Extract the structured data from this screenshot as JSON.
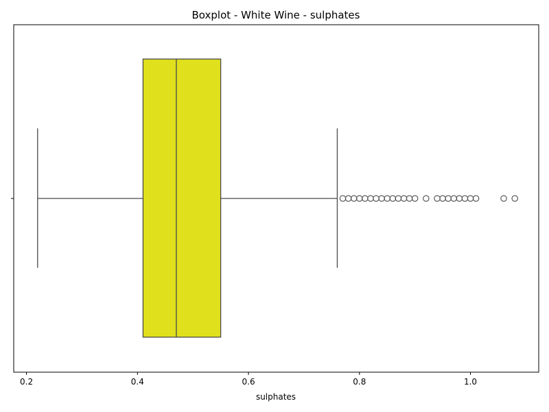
{
  "chart_data": {
    "type": "boxplot",
    "title": "Boxplot - White Wine - sulphates",
    "xlabel": "sulphates",
    "ylabel": "",
    "orientation": "horizontal",
    "xlim": [
      0.177,
      1.123
    ],
    "xticks": [
      0.2,
      0.4,
      0.6,
      0.8,
      1.0
    ],
    "xtick_labels": [
      "0.2",
      "0.4",
      "0.6",
      "0.8",
      "1.0"
    ],
    "box": {
      "whisker_low": 0.22,
      "q1": 0.41,
      "median": 0.47,
      "q3": 0.55,
      "whisker_high": 0.76
    },
    "outliers": [
      0.77,
      0.78,
      0.79,
      0.8,
      0.81,
      0.82,
      0.83,
      0.84,
      0.85,
      0.86,
      0.87,
      0.88,
      0.89,
      0.9,
      0.92,
      0.94,
      0.95,
      0.96,
      0.97,
      0.98,
      0.99,
      1.0,
      1.01,
      1.06,
      1.08
    ],
    "grid": false,
    "colors": {
      "box_fill": "#e0e01c",
      "line": "#4a4a4a",
      "outlier_edge": "#4a4a4a"
    }
  }
}
